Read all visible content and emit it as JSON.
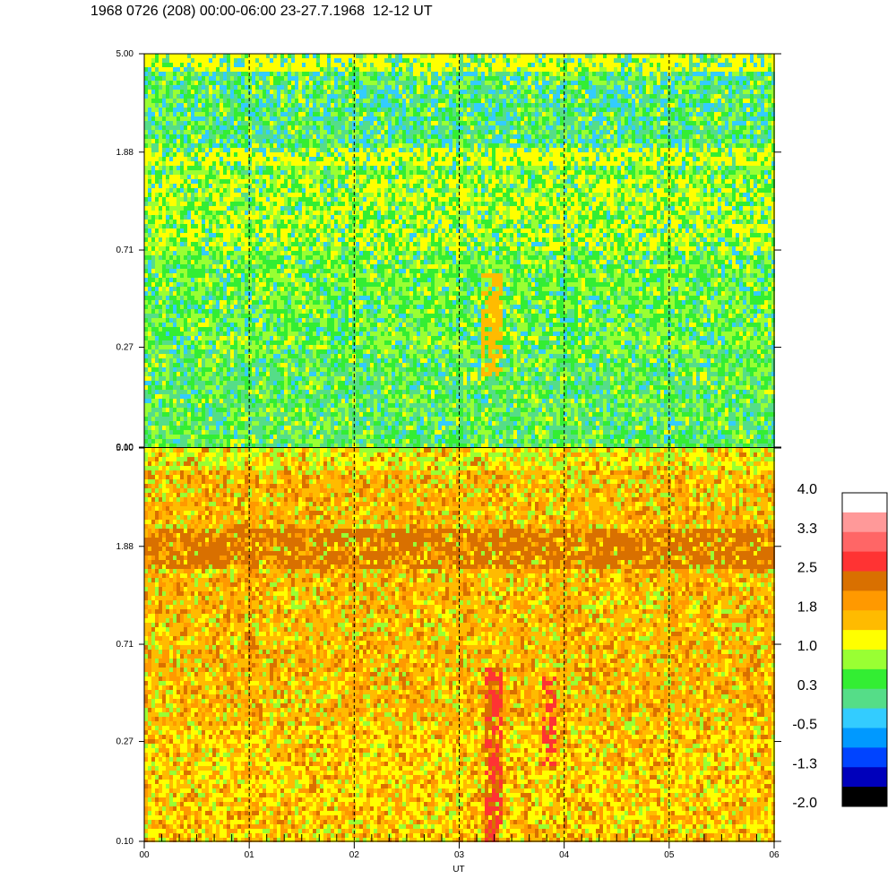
{
  "title": "1968 0726 (208) 00:00-06:00 23-27.7.1968  12-12 UT",
  "chart_data": {
    "type": "heatmap",
    "xlabel": "UT",
    "x_tick_labels": [
      "00",
      "01",
      "02",
      "03",
      "04",
      "05",
      "06"
    ],
    "x_range_hours": [
      0,
      6
    ],
    "panels": [
      {
        "name": "upper",
        "y_scale": "log",
        "y_tick_labels": [
          "5.00",
          "1.88",
          "0.71",
          "0.27",
          "0.10"
        ],
        "y_range": [
          0.1,
          5.0
        ],
        "dominant_levels": "-0.5 to 1.0",
        "features": [
          {
            "note": "yellow band",
            "y": 5.0
          },
          {
            "note": "yellow band",
            "y": 1.88
          },
          {
            "note": "orange patch",
            "x_hours": 3.3,
            "y_range": [
              0.27,
              0.71
            ]
          }
        ]
      },
      {
        "name": "lower",
        "y_scale": "log",
        "y_tick_labels": [
          "5.00",
          "1.88",
          "0.71",
          "0.27",
          "0.10"
        ],
        "y_range": [
          0.1,
          5.0
        ],
        "dominant_levels": "1.0 to 2.5",
        "features": [
          {
            "note": "dark orange band",
            "y": 1.88
          },
          {
            "note": "red streak",
            "x_hours": 3.3,
            "y_range": [
              0.1,
              0.71
            ]
          },
          {
            "note": "red streak",
            "x_hours": 3.85,
            "y_range": [
              0.27,
              0.71
            ]
          }
        ]
      }
    ],
    "grid": "dashed vertical lines at each hour",
    "colorbar": {
      "labels": [
        "4.0",
        "3.3",
        "2.5",
        "1.8",
        "1.0",
        "0.3",
        "-0.5",
        "-1.3",
        "-2.0"
      ],
      "colors": [
        "#ffffff",
        "#ff9999",
        "#ff6666",
        "#ff3333",
        "#d97000",
        "#ff9900",
        "#ffbb00",
        "#ffff00",
        "#99ff33",
        "#33ee33",
        "#55dd88",
        "#33ccff",
        "#0099ff",
        "#0044ff",
        "#0000bb",
        "#000000"
      ]
    }
  }
}
